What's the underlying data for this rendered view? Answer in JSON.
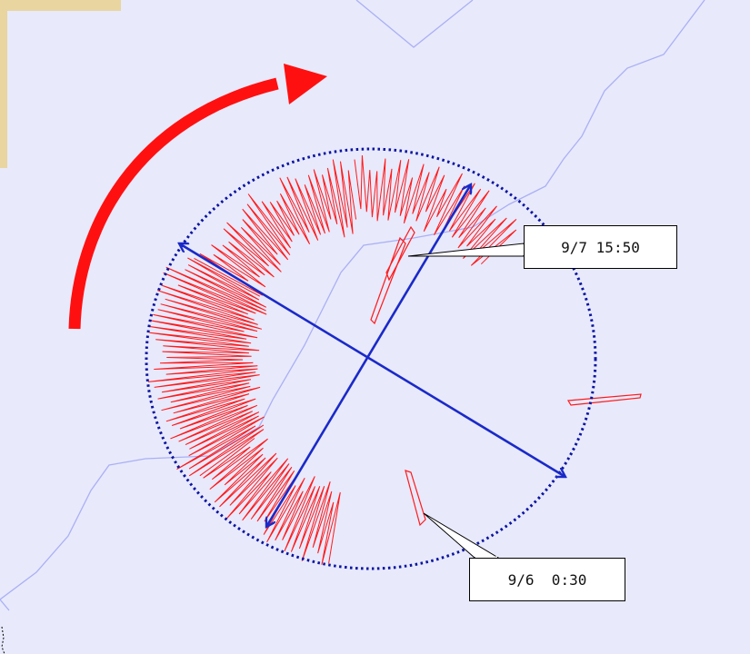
{
  "map": {
    "background_color": "#e8e9fb",
    "coast_line_color": "#aab0f5",
    "track_color": "#ff1a1a",
    "circle_color": "#0a14a0",
    "arrow_color": "#1a2ac8",
    "rotation_arrow_color": "#ff1010",
    "inset_color": "#e8d5a0"
  },
  "callouts": [
    {
      "label": "9/7 15:50"
    },
    {
      "label": "9/6  0:30"
    }
  ]
}
